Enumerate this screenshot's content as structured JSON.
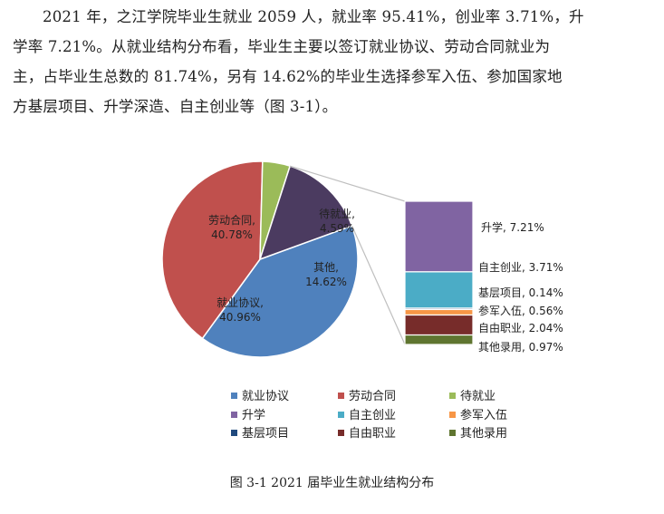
{
  "paragraph": {
    "lines": [
      "2021 年，之江学院毕业生就业 2059 人，就业率 95.41%，创业率 3.71%，升",
      "学率 7.21%。从就业结构分布看，毕业生主要以签订就业协议、劳动合同就业为",
      "主，占毕业生总数的 81.74%，另有 14.62%的毕业生选择参军入伍、参加国家地",
      "方基层项目、升学深造、自主创业等（图 3-1）。"
    ]
  },
  "caption": "图 3-1  2021 届毕业生就业结构分布",
  "chart_data": {
    "type": "pie",
    "title": "",
    "main_pie": {
      "slices": [
        {
          "name": "就业协议",
          "value": 40.96,
          "label": "就业协议,",
          "value_label": "40.96%",
          "color": "#4F81BD"
        },
        {
          "name": "劳动合同",
          "value": 40.78,
          "label": "劳动合同,",
          "value_label": "40.78%",
          "color": "#C0504D"
        },
        {
          "name": "待就业",
          "value": 4.59,
          "label": "待就业,",
          "value_label": "4.59%",
          "color": "#9BBB59"
        },
        {
          "name": "其他",
          "value": 14.62,
          "label": "其他,",
          "value_label": "14.62%",
          "color": "#4B3B60"
        }
      ]
    },
    "breakdown_bar": {
      "of": "其他",
      "segments": [
        {
          "name": "升学",
          "value": 7.21,
          "label": "升学, 7.21%",
          "color": "#8064A2"
        },
        {
          "name": "自主创业",
          "value": 3.71,
          "label": "自主创业, 3.71%",
          "color": "#4BACC6"
        },
        {
          "name": "基层项目",
          "value": 0.14,
          "label": "基层项目, 0.14%",
          "color": "#1F497D"
        },
        {
          "name": "参军入伍",
          "value": 0.56,
          "label": "参军入伍, 0.56%",
          "color": "#F79646"
        },
        {
          "name": "自由职业",
          "value": 2.04,
          "label": "自由职业, 2.04%",
          "color": "#772C2A"
        },
        {
          "name": "其他录用",
          "value": 0.97,
          "label": "其他录用, 0.97%",
          "color": "#5F7530"
        }
      ]
    },
    "legend": {
      "placement": "bottom",
      "items": [
        {
          "name": "就业协议",
          "color": "#4F81BD"
        },
        {
          "name": "劳动合同",
          "color": "#C0504D"
        },
        {
          "name": "待就业",
          "color": "#9BBB59"
        },
        {
          "name": "升学",
          "color": "#8064A2"
        },
        {
          "name": "自主创业",
          "color": "#4BACC6"
        },
        {
          "name": "参军入伍",
          "color": "#F79646"
        },
        {
          "name": "基层项目",
          "color": "#1F497D"
        },
        {
          "name": "自由职业",
          "color": "#772C2A"
        },
        {
          "name": "其他录用",
          "color": "#5F7530"
        }
      ]
    }
  }
}
